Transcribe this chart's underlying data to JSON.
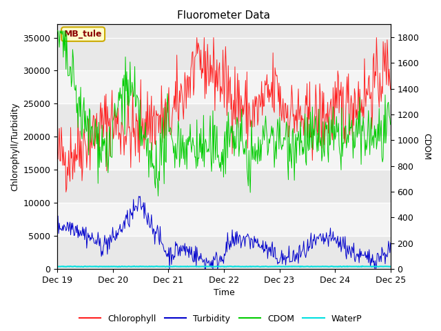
{
  "title": "Fluorometer Data",
  "xlabel": "Time",
  "ylabel_left": "Chlorophyll/Turbidity",
  "ylabel_right": "CDOM",
  "annotation": "MB_tule",
  "ylim_left": [
    0,
    37000
  ],
  "ylim_right": [
    0,
    1900
  ],
  "xtick_labels": [
    "Dec 19",
    "Dec 20",
    "Dec 21",
    "Dec 22",
    "Dec 23",
    "Dec 24",
    "Dec 25"
  ],
  "yticks_left": [
    0,
    5000,
    10000,
    15000,
    20000,
    25000,
    30000,
    35000
  ],
  "yticks_right": [
    0,
    200,
    400,
    600,
    800,
    1000,
    1200,
    1400,
    1600,
    1800
  ],
  "colors": {
    "chlorophyll": "#ff2020",
    "turbidity": "#0000cc",
    "cdom": "#00cc00",
    "waterp": "#00e0e0",
    "bg": "#e8e8e8",
    "band_light": "#f0f0f0",
    "band_dark": "#d8d8d8"
  },
  "legend_entries": [
    "Chlorophyll",
    "Turbidity",
    "CDOM",
    "WaterP"
  ],
  "n_points": 500,
  "seed": 42
}
